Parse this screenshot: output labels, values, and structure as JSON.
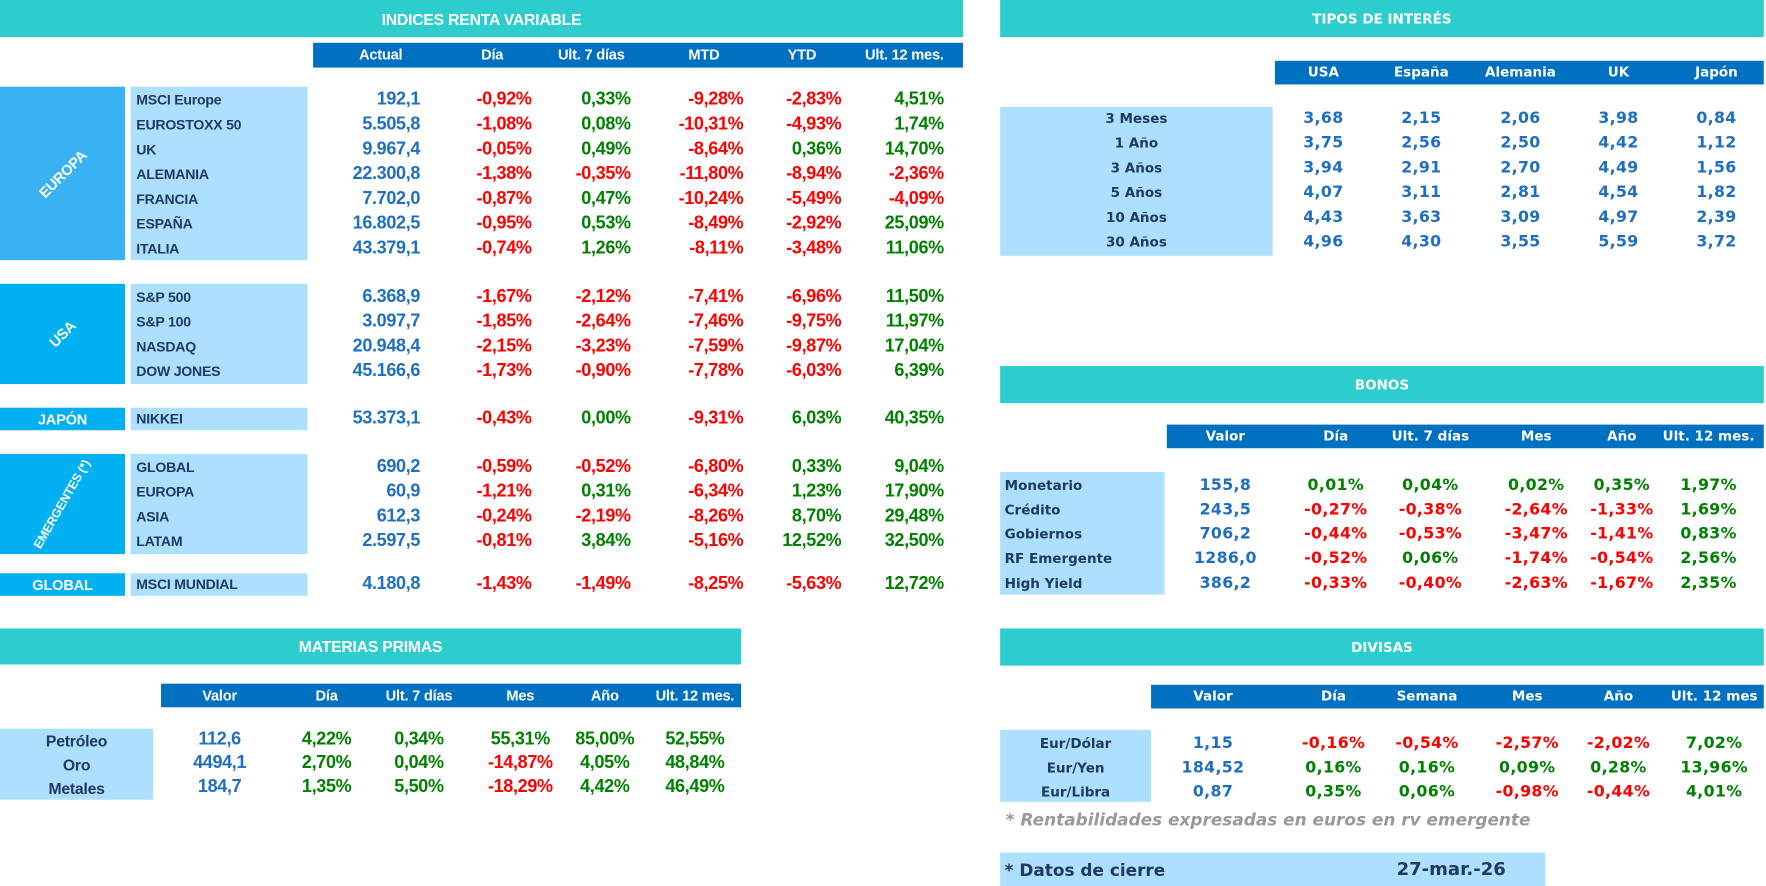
{
  "colors": {
    "title_bg": "#2ECDCD",
    "header_bg": "#0070C0",
    "label_bg": "#ADDFFF",
    "group_europa": "#38B2F2",
    "group_other": "#00B0F0",
    "value_blue": "#1F6FC0",
    "negative": "#FF0000",
    "positive": "#008000",
    "label_text": "#1F3864"
  },
  "renta_variable": {
    "title": "INDICES RENTA VARIABLE",
    "columns": [
      "Actual",
      "Día",
      "Ult. 7 días",
      "MTD",
      "YTD",
      "Ult. 12 mes."
    ],
    "groups": [
      {
        "label": "EUROPA",
        "rows": [
          {
            "name": "MSCI Europe",
            "values": [
              "192,1",
              "-0,92%",
              "0,33%",
              "-9,28%",
              "-2,83%",
              "4,51%"
            ]
          },
          {
            "name": "EUROSTOXX 50",
            "values": [
              "5.505,8",
              "-1,08%",
              "0,08%",
              "-10,31%",
              "-4,93%",
              "1,74%"
            ]
          },
          {
            "name": "UK",
            "values": [
              "9.967,4",
              "-0,05%",
              "0,49%",
              "-8,64%",
              "0,36%",
              "14,70%"
            ]
          },
          {
            "name": "ALEMANIA",
            "values": [
              "22.300,8",
              "-1,38%",
              "-0,35%",
              "-11,80%",
              "-8,94%",
              "-2,36%"
            ]
          },
          {
            "name": "FRANCIA",
            "values": [
              "7.702,0",
              "-0,87%",
              "0,47%",
              "-10,24%",
              "-5,49%",
              "-4,09%"
            ]
          },
          {
            "name": "ESPAÑA",
            "values": [
              "16.802,5",
              "-0,95%",
              "0,53%",
              "-8,49%",
              "-2,92%",
              "25,09%"
            ]
          },
          {
            "name": "ITALIA",
            "values": [
              "43.379,1",
              "-0,74%",
              "1,26%",
              "-8,11%",
              "-3,48%",
              "11,06%"
            ]
          }
        ]
      },
      {
        "label": "USA",
        "rows": [
          {
            "name": "S&P 500",
            "values": [
              "6.368,9",
              "-1,67%",
              "-2,12%",
              "-7,41%",
              "-6,96%",
              "11,50%"
            ]
          },
          {
            "name": "S&P 100",
            "values": [
              "3.097,7",
              "-1,85%",
              "-2,64%",
              "-7,46%",
              "-9,75%",
              "11,97%"
            ]
          },
          {
            "name": "NASDAQ",
            "values": [
              "20.948,4",
              "-2,15%",
              "-3,23%",
              "-7,59%",
              "-9,87%",
              "17,04%"
            ]
          },
          {
            "name": "DOW JONES",
            "values": [
              "45.166,6",
              "-1,73%",
              "-0,90%",
              "-7,78%",
              "-6,03%",
              "6,39%"
            ]
          }
        ]
      },
      {
        "label": "JAPÓN",
        "rows": [
          {
            "name": "NIKKEI",
            "values": [
              "53.373,1",
              "-0,43%",
              "0,00%",
              "-9,31%",
              "6,03%",
              "40,35%"
            ]
          }
        ]
      },
      {
        "label": "EMERGENTES (*)",
        "rows": [
          {
            "name": "GLOBAL",
            "values": [
              "690,2",
              "-0,59%",
              "-0,52%",
              "-6,80%",
              "0,33%",
              "9,04%"
            ]
          },
          {
            "name": "EUROPA",
            "values": [
              "60,9",
              "-1,21%",
              "0,31%",
              "-6,34%",
              "1,23%",
              "17,90%"
            ]
          },
          {
            "name": "ASIA",
            "values": [
              "612,3",
              "-0,24%",
              "-2,19%",
              "-8,26%",
              "8,70%",
              "29,48%"
            ]
          },
          {
            "name": "LATAM",
            "values": [
              "2.597,5",
              "-0,81%",
              "3,84%",
              "-5,16%",
              "12,52%",
              "32,50%"
            ]
          }
        ]
      },
      {
        "label": "GLOBAL",
        "rows": [
          {
            "name": "MSCI MUNDIAL",
            "values": [
              "4.180,8",
              "-1,43%",
              "-1,49%",
              "-8,25%",
              "-5,63%",
              "12,72%"
            ]
          }
        ]
      }
    ]
  },
  "materias_primas": {
    "title": "MATERIAS PRIMAS",
    "columns": [
      "Valor",
      "Día",
      "Ult. 7 días",
      "Mes",
      "Año",
      "Ult. 12 mes."
    ],
    "rows": [
      {
        "name": "Petróleo",
        "values": [
          "112,6",
          "4,22%",
          "0,34%",
          "55,31%",
          "85,00%",
          "52,55%"
        ]
      },
      {
        "name": "Oro",
        "values": [
          "4494,1",
          "2,70%",
          "0,04%",
          "-14,87%",
          "4,05%",
          "48,84%"
        ]
      },
      {
        "name": "Metales",
        "values": [
          "184,7",
          "1,35%",
          "5,50%",
          "-18,29%",
          "4,42%",
          "46,49%"
        ]
      }
    ]
  },
  "tipos_interes": {
    "title": "TIPOS DE INTERÉS",
    "columns": [
      "USA",
      "España",
      "Alemania",
      "UK",
      "Japón"
    ],
    "rows": [
      {
        "name": "3 Meses",
        "values": [
          "3,68",
          "2,15",
          "2,06",
          "3,98",
          "0,84"
        ]
      },
      {
        "name": "1 Año",
        "values": [
          "3,75",
          "2,56",
          "2,50",
          "4,42",
          "1,12"
        ]
      },
      {
        "name": "3 Años",
        "values": [
          "3,94",
          "2,91",
          "2,70",
          "4,49",
          "1,56"
        ]
      },
      {
        "name": "5 Años",
        "values": [
          "4,07",
          "3,11",
          "2,81",
          "4,54",
          "1,82"
        ]
      },
      {
        "name": "10 Años",
        "values": [
          "4,43",
          "3,63",
          "3,09",
          "4,97",
          "2,39"
        ]
      },
      {
        "name": "30 Años",
        "values": [
          "4,96",
          "4,30",
          "3,55",
          "5,59",
          "3,72"
        ]
      }
    ]
  },
  "bonos": {
    "title": "BONOS",
    "columns": [
      "Valor",
      "Día",
      "Ult. 7 días",
      "Mes",
      "Año",
      "Ult. 12 mes."
    ],
    "rows": [
      {
        "name": "Monetario",
        "values": [
          "155,8",
          "0,01%",
          "0,04%",
          "0,02%",
          "0,35%",
          "1,97%"
        ]
      },
      {
        "name": "Crédito",
        "values": [
          "243,5",
          "-0,27%",
          "-0,38%",
          "-2,64%",
          "-1,33%",
          "1,69%"
        ]
      },
      {
        "name": "Gobiernos",
        "values": [
          "706,2",
          "-0,44%",
          "-0,53%",
          "-3,47%",
          "-1,41%",
          "0,83%"
        ]
      },
      {
        "name": "RF Emergente",
        "values": [
          "1286,0",
          "-0,52%",
          "0,06%",
          "-1,74%",
          "-0,54%",
          "2,56%"
        ]
      },
      {
        "name": "High Yield",
        "values": [
          "386,2",
          "-0,33%",
          "-0,40%",
          "-2,63%",
          "-1,67%",
          "2,35%"
        ]
      }
    ]
  },
  "divisas": {
    "title": "DIVISAS",
    "columns": [
      "Valor",
      "Día",
      "Semana",
      "Mes",
      "Año",
      "Ult. 12 mes"
    ],
    "rows": [
      {
        "name": "Eur/Dólar",
        "values": [
          "1,15",
          "-0,16%",
          "-0,54%",
          "-2,57%",
          "-2,02%",
          "7,02%"
        ]
      },
      {
        "name": "Eur/Yen",
        "values": [
          "184,52",
          "0,16%",
          "0,16%",
          "0,09%",
          "0,28%",
          "13,96%"
        ]
      },
      {
        "name": "Eur/Libra",
        "values": [
          "0,87",
          "0,35%",
          "0,06%",
          "-0,98%",
          "-0,44%",
          "4,01%"
        ]
      }
    ]
  },
  "footnote": "* Rentabilidades expresadas en euros en rv emergente",
  "closing": {
    "label": "* Datos de cierre",
    "date": "27-mar.-26"
  }
}
